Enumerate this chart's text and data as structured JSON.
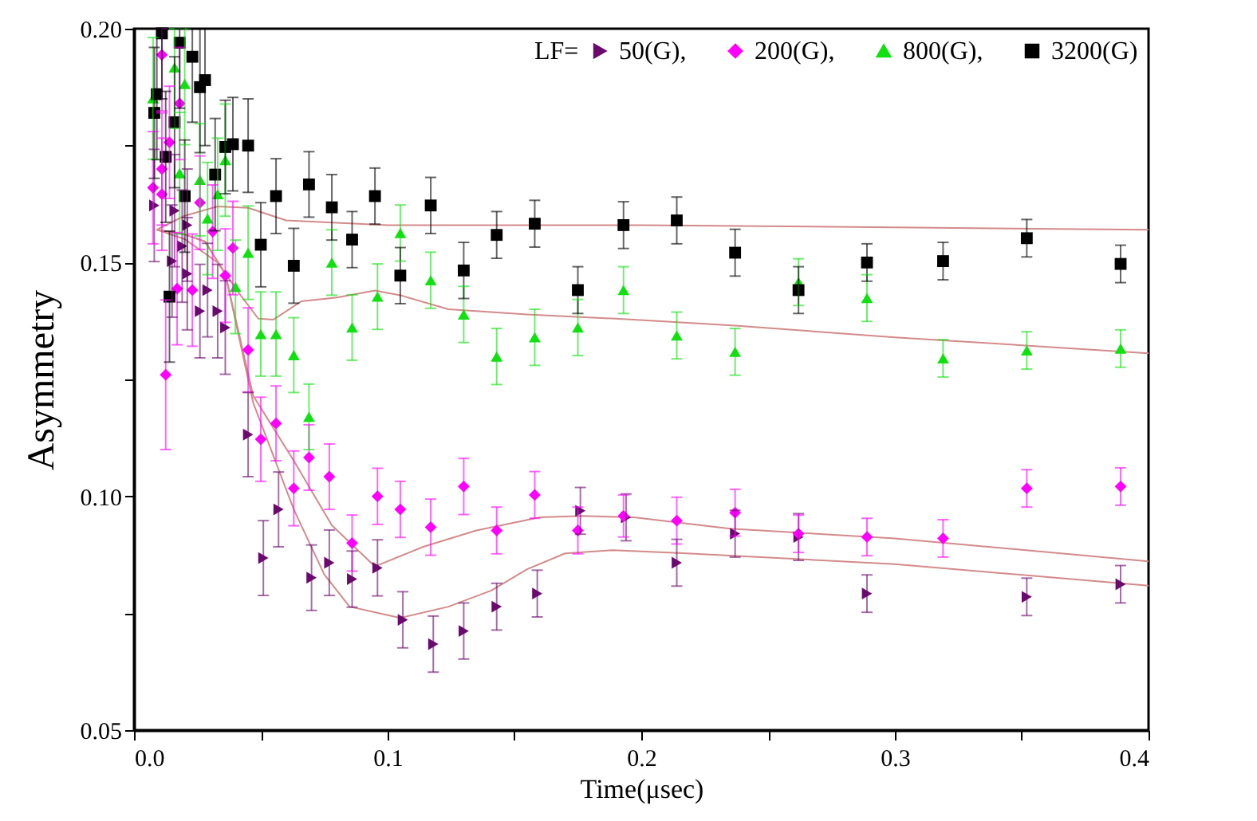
{
  "chart_data": {
    "type": "scatter",
    "xlabel": "Time(μsec)",
    "ylabel": "Asymmetry",
    "legend_title": "LF=",
    "legend": "top right",
    "xlim": [
      0,
      0.4
    ],
    "xticks": [
      {
        "value": 0,
        "label": "0.0"
      },
      {
        "value": 0.05,
        "label": null
      },
      {
        "value": 0.1,
        "label": "0.1"
      },
      {
        "value": 0.15,
        "label": null
      },
      {
        "value": 0.2,
        "label": "0.2"
      },
      {
        "value": 0.25,
        "label": null
      },
      {
        "value": 0.3,
        "label": "0.3"
      },
      {
        "value": 0.35,
        "label": null
      },
      {
        "value": 0.4,
        "label": "0.4"
      }
    ],
    "ylim": [
      0.05,
      0.2
    ],
    "yticks": [
      {
        "value": 0.05,
        "label": "0.05"
      },
      {
        "value": 0.075,
        "label": null
      },
      {
        "value": 0.1,
        "label": "0.10"
      },
      {
        "value": 0.125,
        "label": null
      },
      {
        "value": 0.15,
        "label": "0.15"
      },
      {
        "value": 0.175,
        "label": null
      },
      {
        "value": 0.2,
        "label": "0.20"
      }
    ],
    "series": [
      {
        "name": "50(G),",
        "color": "#6a0a6e",
        "marker": "triangle-right",
        "x": [
          0.008,
          0.015,
          0.016,
          0.019,
          0.021,
          0.021,
          0.026,
          0.029,
          0.033,
          0.036,
          0.045,
          0.051,
          0.057,
          0.07,
          0.077,
          0.086,
          0.096,
          0.106,
          0.118,
          0.13,
          0.143,
          0.159,
          0.176,
          0.194,
          0.214,
          0.237,
          0.262,
          0.289,
          0.352,
          0.389
        ],
        "values": [
          0.1622,
          0.1503,
          0.1611,
          0.1535,
          0.158,
          0.1476,
          0.1396,
          0.1441,
          0.1396,
          0.1361,
          0.1132,
          0.0868,
          0.0972,
          0.0826,
          0.0858,
          0.0823,
          0.0847,
          0.0736,
          0.0684,
          0.0712,
          0.0764,
          0.0792,
          0.0969,
          0.0955,
          0.0858,
          0.092,
          0.0913,
          0.0792,
          0.0785,
          0.0812
        ],
        "errors": [
          0.012,
          0.012,
          0.012,
          0.012,
          0.012,
          0.012,
          0.01,
          0.01,
          0.01,
          0.01,
          0.009,
          0.008,
          0.008,
          0.007,
          0.007,
          0.006,
          0.006,
          0.006,
          0.006,
          0.006,
          0.005,
          0.005,
          0.005,
          0.005,
          0.005,
          0.005,
          0.005,
          0.004,
          0.004,
          0.004
        ]
      },
      {
        "name": "200(G),",
        "color": "#ff00ff",
        "marker": "diamond",
        "x": [
          0.0075,
          0.011,
          0.011,
          0.011,
          0.0125,
          0.014,
          0.017,
          0.018,
          0.023,
          0.026,
          0.031,
          0.036,
          0.039,
          0.045,
          0.05,
          0.056,
          0.063,
          0.069,
          0.077,
          0.086,
          0.096,
          0.105,
          0.117,
          0.13,
          0.143,
          0.158,
          0.175,
          0.193,
          0.214,
          0.237,
          0.262,
          0.289,
          0.319,
          0.352,
          0.389
        ],
        "values": [
          0.166,
          0.1944,
          0.17,
          0.1646,
          0.126,
          0.1757,
          0.1444,
          0.184,
          0.1441,
          0.1628,
          0.1566,
          0.1472,
          0.1531,
          0.1313,
          0.1122,
          0.1156,
          0.1017,
          0.1083,
          0.1042,
          0.09,
          0.1,
          0.0972,
          0.0934,
          0.1021,
          0.0927,
          0.1003,
          0.0927,
          0.0958,
          0.0948,
          0.0965,
          0.092,
          0.0913,
          0.091,
          0.1017,
          0.1021
        ],
        "errors": [
          0.012,
          [
            0.1824,
            0.2
          ],
          0.012,
          0.012,
          0.016,
          0.012,
          0.012,
          0.012,
          0.012,
          0.01,
          0.01,
          0.01,
          0.01,
          0.009,
          0.009,
          0.008,
          0.008,
          0.007,
          0.007,
          0.006,
          0.006,
          0.006,
          0.006,
          0.006,
          0.005,
          0.005,
          0.005,
          0.0045,
          0.005,
          0.005,
          0.004,
          0.004,
          0.004,
          0.004,
          0.004
        ]
      },
      {
        "name": "800(G),",
        "color": "#11e011",
        "marker": "triangle",
        "x": [
          0.0075,
          0.016,
          0.018,
          0.02,
          0.026,
          0.029,
          0.033,
          0.036,
          0.04,
          0.045,
          0.05,
          0.056,
          0.063,
          0.069,
          0.078,
          0.086,
          0.096,
          0.105,
          0.117,
          0.13,
          0.143,
          0.158,
          0.175,
          0.193,
          0.214,
          0.237,
          0.262,
          0.289,
          0.319,
          0.352,
          0.389
        ],
        "values": [
          0.1851,
          0.1917,
          0.1691,
          0.1882,
          0.1677,
          0.1594,
          0.1646,
          0.1719,
          0.1448,
          0.1521,
          0.1347,
          0.1347,
          0.1302,
          0.117,
          0.15,
          0.1361,
          0.1427,
          0.1563,
          0.1462,
          0.1389,
          0.1299,
          0.134,
          0.1361,
          0.1441,
          0.1344,
          0.1309,
          0.1458,
          0.1424,
          0.1295,
          0.1312,
          0.1316
        ],
        "errors": [
          [
            0.1721,
            0.1981
          ],
          [
            0.1787,
            0.2
          ],
          0.013,
          [
            0.1752,
            0.2
          ],
          0.012,
          0.012,
          0.012,
          0.012,
          0.01,
          0.01,
          0.009,
          0.009,
          0.008,
          0.007,
          0.007,
          0.007,
          0.007,
          0.006,
          0.006,
          0.006,
          0.006,
          0.006,
          0.006,
          0.005,
          0.005,
          0.005,
          0.005,
          0.005,
          0.004,
          0.004,
          0.004
        ]
      },
      {
        "name": "3200(G)",
        "color": "#000000",
        "marker": "square",
        "x": [
          0.008,
          0.009,
          0.011,
          0.0125,
          0.014,
          0.016,
          0.018,
          0.02,
          0.023,
          0.026,
          0.028,
          0.032,
          0.036,
          0.039,
          0.045,
          0.05,
          0.056,
          0.063,
          0.069,
          0.078,
          0.086,
          0.095,
          0.105,
          0.117,
          0.13,
          0.143,
          0.158,
          0.175,
          0.193,
          0.214,
          0.237,
          0.262,
          0.289,
          0.319,
          0.352,
          0.389
        ],
        "values": [
          0.182,
          0.186,
          0.199,
          0.1726,
          0.1427,
          0.18,
          0.197,
          0.1642,
          0.194,
          0.1875,
          0.189,
          0.1688,
          0.1747,
          0.1753,
          0.175,
          0.1538,
          0.1642,
          0.1493,
          0.1667,
          0.1618,
          0.1549,
          0.1642,
          0.1472,
          0.1622,
          0.1483,
          0.1559,
          0.1583,
          0.1441,
          0.158,
          0.159,
          0.1521,
          0.1441,
          0.15,
          0.1503,
          0.1552,
          0.1497
        ],
        "errors": [
          [
            0.168,
            0.196
          ],
          [
            0.172,
            0.2
          ],
          [
            0.185,
            0.2
          ],
          0.014,
          0.014,
          [
            0.166,
            0.194
          ],
          [
            0.183,
            0.2
          ],
          0.012,
          [
            0.18,
            0.2
          ],
          [
            0.1735,
            0.2
          ],
          [
            0.175,
            0.2
          ],
          0.012,
          0.01,
          0.01,
          0.01,
          0.009,
          0.008,
          0.008,
          0.007,
          0.007,
          0.006,
          0.006,
          0.006,
          0.006,
          0.006,
          0.005,
          0.005,
          0.005,
          0.005,
          0.005,
          0.005,
          0.005,
          0.004,
          0.004,
          0.004,
          0.004
        ]
      },
      {
        "type": "line",
        "color": "#d48a8a",
        "x": [
          0.009,
          0.02,
          0.033,
          0.045,
          0.06,
          0.1,
          0.2,
          0.3,
          0.4
        ],
        "values": [
          0.157,
          0.16,
          0.162,
          0.1617,
          0.159,
          0.158,
          0.158,
          0.1575,
          0.157
        ]
      },
      {
        "type": "line",
        "color": "#d48a8a",
        "x": [
          0.009,
          0.02,
          0.033,
          0.042,
          0.049,
          0.055,
          0.066,
          0.08,
          0.095,
          0.105,
          0.124,
          0.155,
          0.197,
          0.237,
          0.3,
          0.4
        ],
        "values": [
          0.157,
          0.155,
          0.15,
          0.143,
          0.138,
          0.1378,
          0.1417,
          0.1425,
          0.144,
          0.143,
          0.14,
          0.1389,
          0.1378,
          0.1365,
          0.134,
          0.1306
        ]
      },
      {
        "type": "line",
        "color": "#d48a8a",
        "x": [
          0.009,
          0.02,
          0.028,
          0.036,
          0.047,
          0.063,
          0.078,
          0.095,
          0.114,
          0.135,
          0.16,
          0.177,
          0.197,
          0.235,
          0.3,
          0.4
        ],
        "values": [
          0.157,
          0.156,
          0.1545,
          0.1476,
          0.1215,
          0.1076,
          0.0938,
          0.085,
          0.0892,
          0.0927,
          0.0955,
          0.0958,
          0.0955,
          0.0931,
          0.091,
          0.0861
        ]
      },
      {
        "type": "line",
        "color": "#d48a8a",
        "x": [
          0.009,
          0.02,
          0.028,
          0.036,
          0.047,
          0.063,
          0.075,
          0.085,
          0.105,
          0.124,
          0.141,
          0.155,
          0.17,
          0.189,
          0.218,
          0.3,
          0.4
        ],
        "values": [
          0.157,
          0.156,
          0.1545,
          0.1476,
          0.12,
          0.0972,
          0.0833,
          0.0764,
          0.074,
          0.0764,
          0.0799,
          0.0844,
          0.0878,
          0.0885,
          0.0878,
          0.0855,
          0.0809
        ]
      }
    ]
  }
}
